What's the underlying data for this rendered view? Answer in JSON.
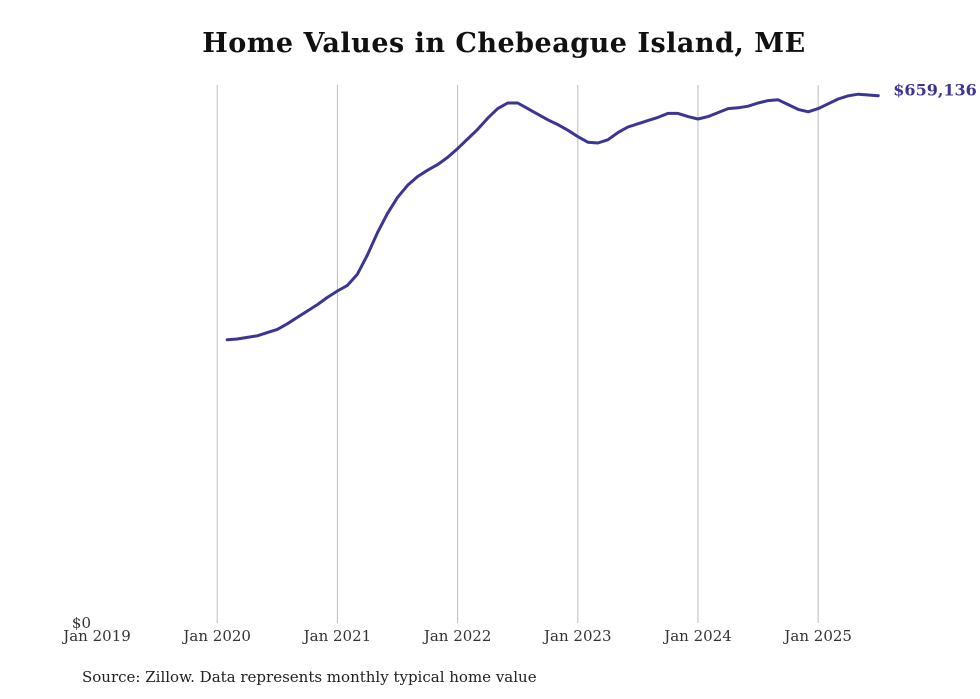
{
  "chart_data": {
    "type": "line",
    "title": "Home Values in Chebeague Island, ME",
    "source": "Source: Zillow. Data represents monthly typical home value",
    "xlabel": "",
    "ylabel": "",
    "x_range": [
      "2019-01",
      "2025-10"
    ],
    "ylim": [
      0,
      660000
    ],
    "y_ticks": [
      {
        "value": 0,
        "label": "$0"
      }
    ],
    "x_ticks": [
      {
        "date": "2019-01",
        "label": "Jan 2019"
      },
      {
        "date": "2020-01",
        "label": "Jan 2020"
      },
      {
        "date": "2021-01",
        "label": "Jan 2021"
      },
      {
        "date": "2022-01",
        "label": "Jan 2022"
      },
      {
        "date": "2023-01",
        "label": "Jan 2023"
      },
      {
        "date": "2024-01",
        "label": "Jan 2024"
      },
      {
        "date": "2025-01",
        "label": "Jan 2025"
      }
    ],
    "grid": {
      "vertical": true,
      "horizontal": false
    },
    "line_color": "#3b3594",
    "end_label": "$659,136",
    "series": [
      {
        "x": [
          "2020-02",
          "2020-03",
          "2020-04",
          "2020-05",
          "2020-06",
          "2020-07",
          "2020-08",
          "2020-09",
          "2020-10",
          "2020-11",
          "2020-12",
          "2021-01",
          "2021-02",
          "2021-03",
          "2021-04",
          "2021-05",
          "2021-06",
          "2021-07",
          "2021-08",
          "2021-09",
          "2021-10",
          "2021-11",
          "2021-12",
          "2022-01",
          "2022-02",
          "2022-03",
          "2022-04",
          "2022-05",
          "2022-06",
          "2022-07",
          "2022-08",
          "2022-09",
          "2022-10",
          "2022-11",
          "2022-12",
          "2023-01",
          "2023-02",
          "2023-03",
          "2023-04",
          "2023-05",
          "2023-06",
          "2023-07",
          "2023-08",
          "2023-09",
          "2023-10",
          "2023-11",
          "2023-12",
          "2024-01",
          "2024-02",
          "2024-03",
          "2024-04",
          "2024-05",
          "2024-06",
          "2024-07",
          "2024-08",
          "2024-09",
          "2024-10",
          "2024-11",
          "2024-12",
          "2025-01",
          "2025-02",
          "2025-03",
          "2025-04",
          "2025-05",
          "2025-06",
          "2025-07"
        ],
        "y": [
          354000,
          355000,
          357000,
          359000,
          363000,
          367000,
          374000,
          382000,
          390000,
          398000,
          407000,
          415000,
          422000,
          436000,
          460000,
          488000,
          512000,
          532000,
          547000,
          558000,
          566000,
          573000,
          582000,
          593000,
          605000,
          617000,
          631000,
          643000,
          650000,
          650000,
          643000,
          636000,
          629000,
          623000,
          616000,
          608000,
          601000,
          600000,
          604000,
          613000,
          620000,
          624000,
          628000,
          632000,
          637000,
          637000,
          633000,
          630000,
          633000,
          638000,
          643000,
          644000,
          646000,
          650000,
          653000,
          654000,
          648000,
          642000,
          639000,
          643000,
          649000,
          655000,
          659000,
          661000,
          660000,
          659136
        ]
      }
    ]
  }
}
